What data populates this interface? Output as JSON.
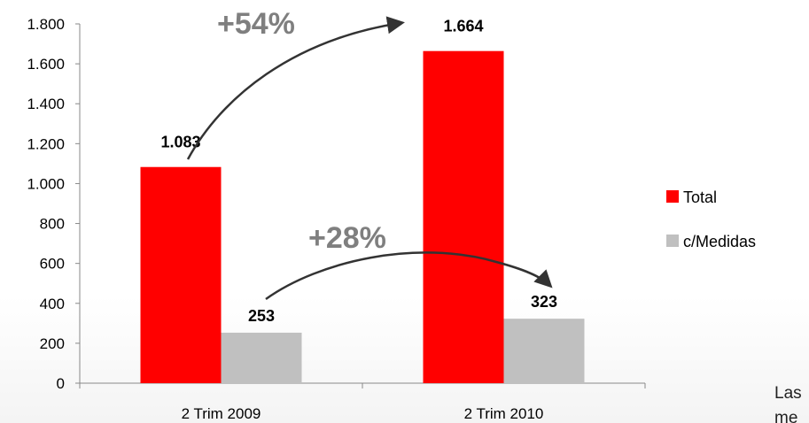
{
  "chart_data": {
    "type": "bar",
    "categories": [
      "2 Trim 2009",
      "2 Trim 2010"
    ],
    "series": [
      {
        "name": "Total",
        "color": "#ff0000",
        "values": [
          1083,
          1664
        ],
        "labels": [
          "1.083",
          "1.664"
        ]
      },
      {
        "name": "c/Medidas",
        "color": "#c0c0c0",
        "values": [
          253,
          323
        ],
        "labels": [
          "253",
          "323"
        ]
      }
    ],
    "ylim": [
      0,
      1800
    ],
    "yticks": [
      0,
      200,
      400,
      600,
      800,
      1000,
      1200,
      1400,
      1600,
      1800
    ],
    "ytick_labels": [
      "0",
      "200",
      "400",
      "600",
      "800",
      "1.000",
      "1.200",
      "1.400",
      "1.600",
      "1.800"
    ],
    "legend_position": "right",
    "grid": false,
    "annotations": [
      {
        "text": "+54%",
        "from": "Total 2 Trim 2009",
        "to": "Total 2 Trim 2010"
      },
      {
        "text": "+28%",
        "from": "c/Medidas 2 Trim 2009",
        "to": "c/Medidas 2 Trim 2010"
      }
    ],
    "footnote_fragment": [
      "Las",
      "me"
    ]
  }
}
